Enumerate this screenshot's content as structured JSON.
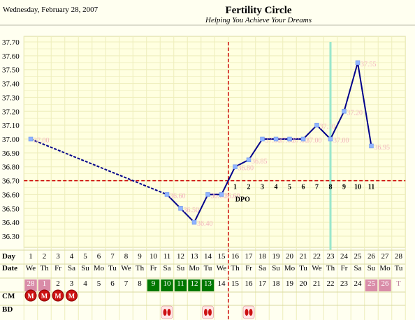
{
  "header": {
    "date": "Wednesday, February 28, 2007",
    "title": "Fertility Circle",
    "subtitle": "Helping You Achieve Your Dreams"
  },
  "colors": {
    "background": "#fffff0",
    "grid": "#eeeebb",
    "line": "#00008b",
    "point": "#8fb3ff",
    "point_label": "#f2b3bd",
    "coverline": "#cc0000",
    "ovulation_line": "#99e6cc",
    "date_pink": "#d98ca8",
    "date_green": "#007700",
    "cm_marker": "#cc1111",
    "bd_marker": "#cc1111"
  },
  "chart_data": {
    "type": "line",
    "title": "",
    "xlabel": "Day",
    "ylabel": "",
    "ylim": [
      36.3,
      37.7
    ],
    "yticks": [
      "37.70",
      "37.60",
      "37.50",
      "37.40",
      "37.30",
      "37.20",
      "37.10",
      "37.00",
      "36.90",
      "36.80",
      "36.70",
      "36.60",
      "36.50",
      "36.40",
      "36.30"
    ],
    "days": [
      1,
      2,
      3,
      4,
      5,
      6,
      7,
      8,
      9,
      10,
      11,
      12,
      13,
      14,
      15,
      16,
      17,
      18,
      19,
      20,
      21,
      22,
      23,
      24,
      25,
      26,
      27,
      28
    ],
    "weekdays": [
      "We",
      "Th",
      "Fr",
      "Sa",
      "Su",
      "Mo",
      "Tu",
      "We",
      "Th",
      "Fr",
      "Sa",
      "Su",
      "Mo",
      "Tu",
      "We",
      "Th",
      "Fr",
      "Sa",
      "Su",
      "Mo",
      "Tu",
      "We",
      "Th",
      "Fr",
      "Sa",
      "Su",
      "Mo",
      "Tu"
    ],
    "dates": [
      "28",
      "1",
      "2",
      "3",
      "4",
      "5",
      "6",
      "7",
      "8",
      "9",
      "10",
      "11",
      "12",
      "13",
      "14",
      "15",
      "16",
      "17",
      "18",
      "19",
      "20",
      "21",
      "22",
      "23",
      "24",
      "25",
      "26",
      "T"
    ],
    "date_styles": [
      "pink",
      "pink",
      "",
      "",
      "",
      "",
      "",
      "",
      "",
      "green",
      "green",
      "green",
      "green",
      "green",
      "",
      "",
      "",
      "",
      "",
      "",
      "",
      "",
      "",
      "",
      "",
      "pink",
      "pink",
      "faint"
    ],
    "series": [
      {
        "values": [
          [
            1,
            37.0,
            "37.00"
          ],
          [
            11,
            36.6,
            "36.60"
          ],
          [
            12,
            36.5,
            "36.50"
          ],
          [
            13,
            36.4,
            "36.40"
          ],
          [
            14,
            36.6,
            "36.60"
          ],
          [
            15,
            36.6,
            "36.60"
          ],
          [
            16,
            36.8,
            "36.80"
          ],
          [
            17,
            36.85,
            "36.85"
          ],
          [
            18,
            37.0,
            "37.00"
          ],
          [
            19,
            37.0,
            "37.00"
          ],
          [
            20,
            37.0,
            "37.00"
          ],
          [
            21,
            37.0,
            "37.00"
          ],
          [
            22,
            37.1,
            "37.10"
          ],
          [
            23,
            37.0,
            "37.00"
          ],
          [
            24,
            37.2,
            "37.20"
          ],
          [
            25,
            37.55,
            "37.55"
          ],
          [
            26,
            36.95,
            "36.95"
          ]
        ]
      }
    ],
    "dashed_segment": [
      1,
      11
    ],
    "coverline": 36.7,
    "ovulation_day": 15,
    "highlight_day": 23,
    "dpo_labels": [
      "1",
      "2",
      "3",
      "4",
      "5",
      "6",
      "7",
      "8",
      "9",
      "10",
      "11"
    ],
    "dpo_start_day": 16,
    "dpo_text": "DPO",
    "grid": true,
    "rows": {
      "day": "Day",
      "date": "Date",
      "cm": "CM",
      "bd": "BD"
    },
    "cm_days": [
      1,
      2,
      3,
      4
    ],
    "cm_marker": "M",
    "bd_days": [
      11,
      14,
      17
    ]
  }
}
